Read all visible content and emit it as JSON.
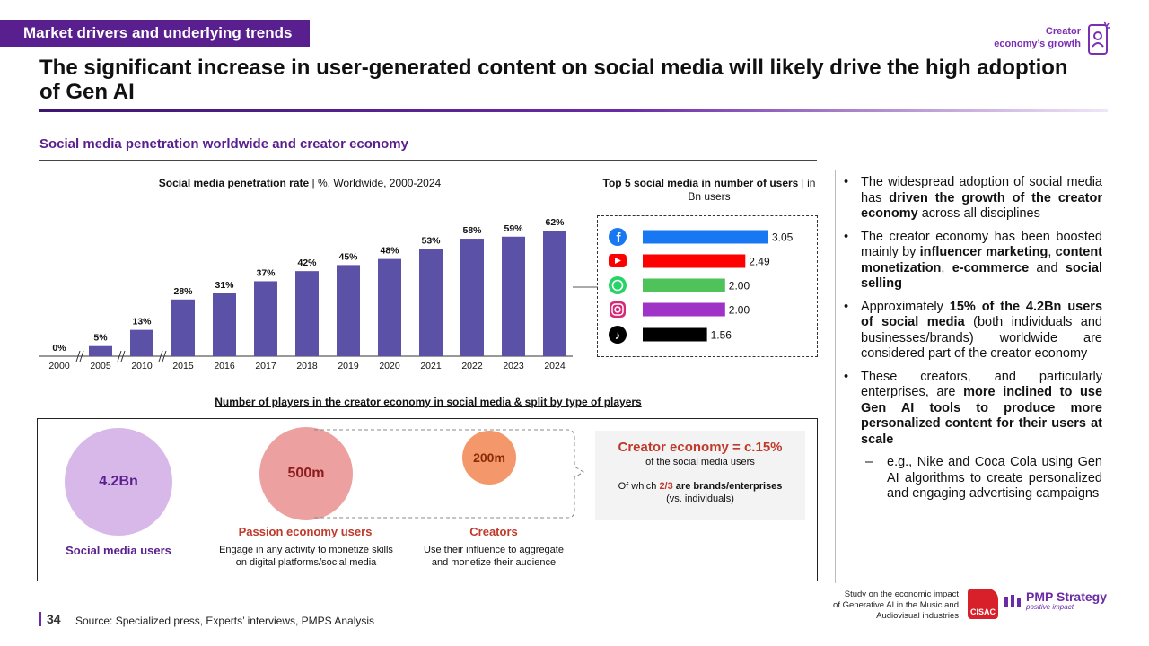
{
  "header": {
    "tag": "Market drivers and underlying trends",
    "corner_line1": "Creator",
    "corner_line2": "economy’s growth",
    "title": "The significant increase in user-generated content on social media will likely drive the high adoption of Gen AI"
  },
  "section": {
    "heading": "Social media penetration worldwide and creator economy"
  },
  "colors": {
    "accent": "#5a1f8f",
    "bar": "#5b52a8",
    "red": "#c0392b"
  },
  "chart_data": [
    {
      "type": "bar",
      "title": "Social media penetration rate",
      "subtitle": "| %, Worldwide, 2000-2024",
      "categories": [
        "2000",
        "2005",
        "2010",
        "2015",
        "2016",
        "2017",
        "2018",
        "2019",
        "2020",
        "2021",
        "2022",
        "2023",
        "2024"
      ],
      "values": [
        0,
        5,
        13,
        28,
        31,
        37,
        42,
        45,
        48,
        53,
        58,
        59,
        62
      ],
      "value_labels": [
        "0%",
        "5%",
        "13%",
        "28%",
        "31%",
        "37%",
        "42%",
        "45%",
        "48%",
        "53%",
        "58%",
        "59%",
        "62%"
      ],
      "axis_breaks_after": [
        "2000",
        "2005",
        "2010"
      ],
      "ylim": [
        0,
        62
      ]
    },
    {
      "type": "bar",
      "orientation": "horizontal",
      "title": "Top 5 social media in number of users",
      "subtitle": "| in Bn users",
      "categories": [
        "Facebook",
        "YouTube",
        "WhatsApp",
        "Instagram",
        "TikTok"
      ],
      "values": [
        3.05,
        2.49,
        2.0,
        2.0,
        1.56
      ],
      "value_labels": [
        "3.05",
        "2.49",
        "2.00",
        "2.00",
        "1.56"
      ],
      "bar_colors": [
        "#1877f2",
        "#ff0000",
        "#4fc35a",
        "#a033c7",
        "#000000"
      ],
      "icons": [
        "facebook-icon",
        "youtube-icon",
        "whatsapp-icon",
        "instagram-icon",
        "tiktok-icon"
      ],
      "xlim": [
        0,
        3.05
      ]
    }
  ],
  "players": {
    "title": "Number of players in the creator economy in social media & split by type of players",
    "social": {
      "value": "4.2Bn",
      "label": "Social media users"
    },
    "passion": {
      "value": "500m",
      "label": "Passion economy users",
      "desc1": "Engage in any activity to monetize skills",
      "desc2": "on digital platforms/social media"
    },
    "creators": {
      "value": "200m",
      "label": "Creators",
      "desc1": "Use their influence to aggregate",
      "desc2": "and monetize their audience"
    },
    "ce_main": "Creator economy = c.15%",
    "ce_sub": "of the social media users",
    "ce_of_prefix": "Of which",
    "ce_of_frac": "2/3",
    "ce_of_bold": "are brands/enterprises",
    "ce_of_end": "(vs. individuals)"
  },
  "bullets": {
    "b1_a": "The widespread adoption of social media has",
    "b1_b": "driven the growth of the creator economy",
    "b1_c": "across all disciplines",
    "b2_a": "The creator economy has been boosted mainly by",
    "b2_b": "influencer marketing",
    "b2_c": ",",
    "b2_d": "content monetization",
    "b2_e": ",",
    "b2_f": "e-commerce",
    "b2_g": "and",
    "b2_h": "social selling",
    "b3_a": "Approximately",
    "b3_b": "15% of the 4.2Bn users of social media",
    "b3_c": "(both individuals and businesses/brands) worldwide are considered part of the creator economy",
    "b4_a": "These creators, and particularly enterprises, are",
    "b4_b": "more inclined to use Gen AI tools to produce more personalized content for their users at scale",
    "b5_dash": "–",
    "b5": "e.g., Nike and Coca Cola using Gen AI algorithms to create personalized and engaging advertising campaigns"
  },
  "footer": {
    "page": "34",
    "source": "Source:  Specialized press, Experts’ interviews, PMPS Analysis",
    "study1": "Study on the economic impact",
    "study2": "of Generative AI in the Music and",
    "study3": "Audiovisual industries",
    "cisac": "CISAC",
    "pmp_name": "PMP Strategy",
    "pmp_tag": "positive impact"
  }
}
